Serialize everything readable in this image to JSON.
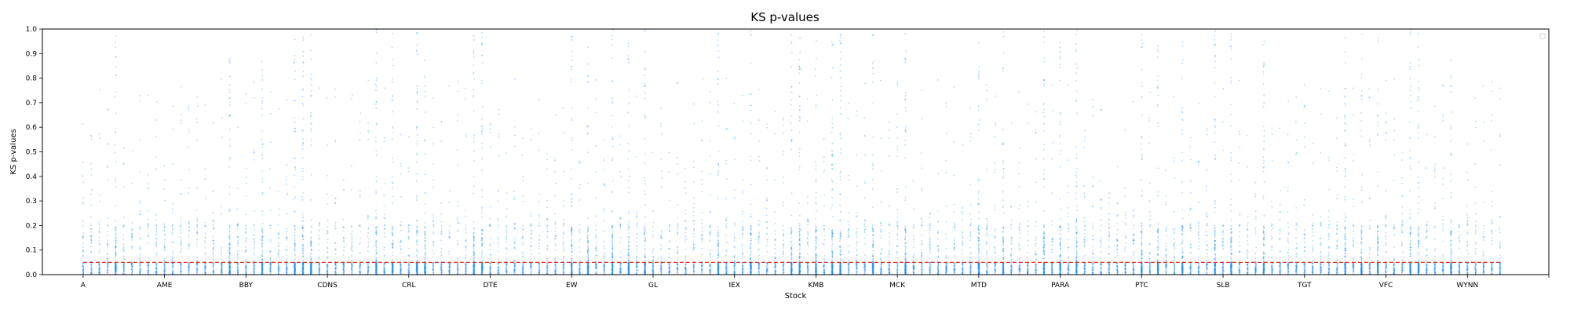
{
  "colors": {
    "points": "#1e90ff",
    "threshold": "#e8282a",
    "axis": "#000000"
  },
  "chart_data": {
    "type": "scatter",
    "title": "KS p-values",
    "xlabel": "Stock",
    "ylabel": "KS p-values",
    "ylim": [
      0,
      1
    ],
    "yticks": [
      "0.0",
      "0.1",
      "0.2",
      "0.3",
      "0.4",
      "0.5",
      "0.6",
      "0.7",
      "0.8",
      "0.9",
      "1.0"
    ],
    "categories": [
      "A",
      "AME",
      "BBY",
      "CDNS",
      "CRL",
      "DTE",
      "EW",
      "GL",
      "IEX",
      "KMB",
      "MCK",
      "MTD",
      "PARA",
      "PTC",
      "SLB",
      "TGT",
      "VFC",
      "WYNN"
    ],
    "category_spacing": 10,
    "n_stocks": 175,
    "threshold_line": {
      "y": 0.05,
      "style": "dashed"
    },
    "legend": "top-right (empty)",
    "grid": false,
    "series": [
      {
        "marker": "dot",
        "density_profile": "most points below 0.1 for every stock; sparse columns reach up to 1.0, dense high columns near BBY, CDNS, DTE, GL, IEX, KMB, MTD, PTC, VFC"
      }
    ]
  }
}
